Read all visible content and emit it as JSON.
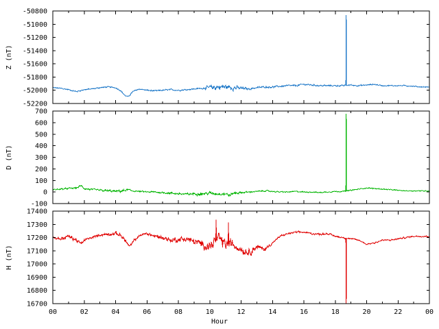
{
  "chart_data": [
    {
      "type": "line",
      "ylabel": "Z (nT)",
      "ylim": [
        -52200,
        -50800
      ],
      "yticks": [
        -52200,
        -52000,
        -51800,
        -51600,
        -51400,
        -51200,
        -51000,
        -50800
      ],
      "xlim": [
        0,
        24
      ],
      "color": "#1e78c8",
      "baseline": [
        [
          0,
          -51960
        ],
        [
          0.5,
          -51970
        ],
        [
          1,
          -51990
        ],
        [
          1.5,
          -52020
        ],
        [
          2,
          -51990
        ],
        [
          2.5,
          -51980
        ],
        [
          3,
          -51960
        ],
        [
          3.5,
          -51950
        ],
        [
          4,
          -51960
        ],
        [
          4.3,
          -52000
        ],
        [
          4.6,
          -52080
        ],
        [
          4.8,
          -52100
        ],
        [
          5.1,
          -52020
        ],
        [
          5.5,
          -51980
        ],
        [
          6,
          -52000
        ],
        [
          6.5,
          -52010
        ],
        [
          7,
          -52000
        ],
        [
          7.5,
          -51990
        ],
        [
          8,
          -52000
        ],
        [
          8.5,
          -51990
        ],
        [
          9,
          -51980
        ],
        [
          9.5,
          -51970
        ],
        [
          10,
          -51960
        ],
        [
          10.5,
          -51950
        ],
        [
          11,
          -51950
        ],
        [
          11.5,
          -51960
        ],
        [
          12,
          -51970
        ],
        [
          12.5,
          -51980
        ],
        [
          13,
          -51960
        ],
        [
          13.5,
          -51950
        ],
        [
          14,
          -51950
        ],
        [
          14.5,
          -51940
        ],
        [
          15,
          -51930
        ],
        [
          15.5,
          -51930
        ],
        [
          16,
          -51910
        ],
        [
          16.5,
          -51920
        ],
        [
          17,
          -51930
        ],
        [
          17.5,
          -51930
        ],
        [
          18,
          -51930
        ],
        [
          18.5,
          -51930
        ],
        [
          19,
          -51920
        ],
        [
          19.5,
          -51930
        ],
        [
          20,
          -51920
        ],
        [
          20.5,
          -51910
        ],
        [
          21,
          -51930
        ],
        [
          21.5,
          -51930
        ],
        [
          22,
          -51930
        ],
        [
          22.5,
          -51930
        ],
        [
          23,
          -51940
        ],
        [
          23.5,
          -51950
        ],
        [
          24,
          -51950
        ]
      ],
      "noise": [
        [
          0,
          10
        ],
        [
          9.5,
          12
        ],
        [
          10,
          40
        ],
        [
          10.3,
          55
        ],
        [
          11.5,
          40
        ],
        [
          12.5,
          15
        ],
        [
          15.5,
          14
        ],
        [
          24,
          8
        ]
      ],
      "spikes": [
        [
          18.7,
          -50860
        ]
      ]
    },
    {
      "type": "line",
      "ylabel": "D (nT)",
      "ylim": [
        -100,
        700
      ],
      "yticks": [
        -100,
        0,
        100,
        200,
        300,
        400,
        500,
        600,
        700
      ],
      "xlim": [
        0,
        24
      ],
      "color": "#00b400",
      "baseline": [
        [
          0,
          20
        ],
        [
          0.5,
          25
        ],
        [
          1,
          30
        ],
        [
          1.5,
          35
        ],
        [
          1.8,
          55
        ],
        [
          2,
          30
        ],
        [
          2.5,
          20
        ],
        [
          3,
          15
        ],
        [
          3.5,
          10
        ],
        [
          4,
          5
        ],
        [
          4.5,
          10
        ],
        [
          4.8,
          20
        ],
        [
          5,
          10
        ],
        [
          5.5,
          5
        ],
        [
          6,
          0
        ],
        [
          6.5,
          0
        ],
        [
          7,
          -5
        ],
        [
          7.5,
          -10
        ],
        [
          8,
          -15
        ],
        [
          8.5,
          -20
        ],
        [
          9,
          -15
        ],
        [
          9.5,
          -15
        ],
        [
          10,
          -10
        ],
        [
          10.5,
          -15
        ],
        [
          11,
          -15
        ],
        [
          11.3,
          -30
        ],
        [
          11.5,
          -10
        ],
        [
          12,
          -5
        ],
        [
          12.5,
          0
        ],
        [
          13,
          5
        ],
        [
          13.5,
          10
        ],
        [
          14,
          5
        ],
        [
          14.5,
          0
        ],
        [
          15,
          0
        ],
        [
          15.5,
          5
        ],
        [
          16,
          0
        ],
        [
          16.5,
          0
        ],
        [
          17,
          -5
        ],
        [
          17.5,
          0
        ],
        [
          18,
          5
        ],
        [
          18.5,
          5
        ],
        [
          19,
          15
        ],
        [
          19.5,
          25
        ],
        [
          20,
          35
        ],
        [
          20.5,
          30
        ],
        [
          21,
          25
        ],
        [
          21.5,
          20
        ],
        [
          22,
          15
        ],
        [
          22.5,
          10
        ],
        [
          23,
          10
        ],
        [
          23.5,
          10
        ],
        [
          24,
          10
        ]
      ],
      "noise": [
        [
          0,
          6
        ],
        [
          4.5,
          12
        ],
        [
          5.2,
          6
        ],
        [
          10,
          14
        ],
        [
          11.5,
          14
        ],
        [
          12.5,
          6
        ],
        [
          24,
          4
        ]
      ],
      "spikes": [
        [
          18.7,
          675
        ]
      ]
    },
    {
      "type": "line",
      "ylabel": "H (nT)",
      "ylim": [
        16700,
        17400
      ],
      "yticks": [
        16700,
        16800,
        16900,
        17000,
        17100,
        17200,
        17300,
        17400
      ],
      "xlim": [
        0,
        24
      ],
      "color": "#e00000",
      "baseline": [
        [
          0,
          17200
        ],
        [
          0.5,
          17190
        ],
        [
          1,
          17210
        ],
        [
          1.5,
          17180
        ],
        [
          1.8,
          17150
        ],
        [
          2,
          17180
        ],
        [
          2.5,
          17200
        ],
        [
          3,
          17220
        ],
        [
          3.5,
          17225
        ],
        [
          4,
          17230
        ],
        [
          4.3,
          17220
        ],
        [
          4.6,
          17180
        ],
        [
          4.9,
          17130
        ],
        [
          5.2,
          17180
        ],
        [
          5.6,
          17220
        ],
        [
          6,
          17230
        ],
        [
          6.5,
          17210
        ],
        [
          7,
          17200
        ],
        [
          7.5,
          17180
        ],
        [
          8,
          17185
        ],
        [
          8.5,
          17190
        ],
        [
          9,
          17170
        ],
        [
          9.5,
          17150
        ],
        [
          10,
          17130
        ],
        [
          10.3,
          17170
        ],
        [
          10.6,
          17190
        ],
        [
          11,
          17150
        ],
        [
          11.4,
          17150
        ],
        [
          11.8,
          17130
        ],
        [
          12.2,
          17100
        ],
        [
          12.5,
          17090
        ],
        [
          13,
          17130
        ],
        [
          13.5,
          17110
        ],
        [
          14,
          17160
        ],
        [
          14.5,
          17210
        ],
        [
          15,
          17230
        ],
        [
          15.5,
          17240
        ],
        [
          16,
          17240
        ],
        [
          16.5,
          17230
        ],
        [
          17,
          17225
        ],
        [
          17.5,
          17230
        ],
        [
          18,
          17210
        ],
        [
          18.5,
          17200
        ],
        [
          19,
          17190
        ],
        [
          19.5,
          17180
        ],
        [
          20,
          17150
        ],
        [
          20.5,
          17160
        ],
        [
          21,
          17180
        ],
        [
          21.5,
          17180
        ],
        [
          22,
          17190
        ],
        [
          22.5,
          17200
        ],
        [
          23,
          17210
        ],
        [
          23.5,
          17210
        ],
        [
          24,
          17210
        ]
      ],
      "noise": [
        [
          0,
          8
        ],
        [
          1.5,
          18
        ],
        [
          2.3,
          8
        ],
        [
          4.5,
          16
        ],
        [
          5.5,
          8
        ],
        [
          9.5,
          30
        ],
        [
          10.2,
          45
        ],
        [
          11.2,
          45
        ],
        [
          12.5,
          30
        ],
        [
          13.5,
          16
        ],
        [
          14.3,
          8
        ],
        [
          24,
          6
        ]
      ],
      "spikes": [
        [
          10.4,
          17335
        ],
        [
          11.2,
          17315
        ],
        [
          18.7,
          16700
        ]
      ]
    }
  ],
  "xaxis": {
    "label": "Hour",
    "ticks": [
      "00",
      "02",
      "04",
      "06",
      "08",
      "10",
      "12",
      "14",
      "16",
      "18",
      "20",
      "22",
      "00"
    ]
  }
}
